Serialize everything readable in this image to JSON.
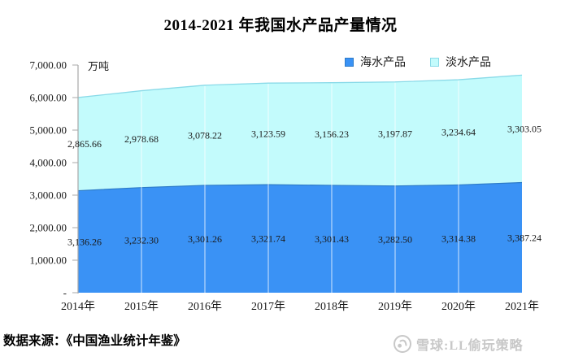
{
  "header": {
    "title": "2014-2021 年我国水产品产量情况"
  },
  "chart_data": {
    "type": "area",
    "stacked": true,
    "title": "2014-2021 年我国水产品产量情况",
    "unit_label": "万吨",
    "categories": [
      "2014年",
      "2015年",
      "2016年",
      "2017年",
      "2018年",
      "2019年",
      "2020年",
      "2021年"
    ],
    "series": [
      {
        "name": "海水产品",
        "color": "#3A92F5",
        "line_color": "#2D7BC8",
        "values": [
          3136.26,
          3232.3,
          3301.26,
          3321.74,
          3301.43,
          3282.5,
          3314.38,
          3387.24
        ],
        "labels": [
          "3,136.26",
          "3,232.30",
          "3,301.26",
          "3,321.74",
          "3,301.43",
          "3,282.50",
          "3,314.38",
          "3,387.24"
        ]
      },
      {
        "name": "淡水产品",
        "color": "#C3FBFC",
        "line_color": "#8ADAE8",
        "values": [
          2865.66,
          2978.68,
          3078.22,
          3123.59,
          3156.23,
          3197.87,
          3234.64,
          3303.05
        ],
        "labels": [
          "2,865.66",
          "2,978.68",
          "3,078.22",
          "3,123.59",
          "3,156.23",
          "3,197.87",
          "3,234.64",
          "3,303.05"
        ]
      }
    ],
    "y_ticks": [
      "7,000.00",
      "6,000.00",
      "5,000.00",
      "4,000.00",
      "3,000.00",
      "2,000.00",
      "1,000.00",
      "-"
    ],
    "ylim": [
      0,
      7000
    ],
    "axis_color": "#A8A8A8",
    "gridline_color": "#ffffff",
    "legend_position": "top-right",
    "label_color": "#1a1a1a"
  },
  "footer": {
    "source": "数据来源：《中国渔业统计年鉴》"
  },
  "watermark": {
    "brand": "雪球",
    "text": "雪球:LL偷玩策略",
    "color": "#c8c8c8"
  }
}
